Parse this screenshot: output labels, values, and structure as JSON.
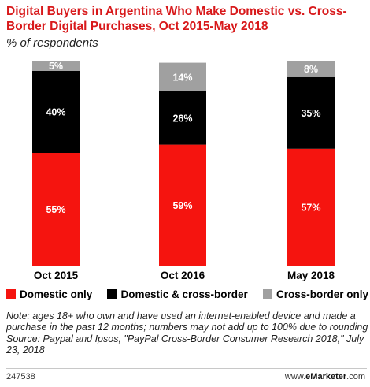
{
  "title": "Digital Buyers in Argentina Who Make Domestic vs. Cross-Border Digital Purchases, Oct 2015-May 2018",
  "subtitle": "% of respondents",
  "chart_data": {
    "type": "bar",
    "stacked": true,
    "categories": [
      "Oct 2015",
      "Oct 2016",
      "May 2018"
    ],
    "series": [
      {
        "name": "Domestic only",
        "color": "#f5140f",
        "values": [
          55,
          59,
          57
        ],
        "labels": [
          "55%",
          "59%",
          "57%"
        ]
      },
      {
        "name": "Domestic & cross-border",
        "color": "#000000",
        "values": [
          40,
          26,
          35
        ],
        "labels": [
          "40%",
          "26%",
          "35%"
        ]
      },
      {
        "name": "Cross-border only",
        "color": "#a0a0a0",
        "values": [
          5,
          14,
          8
        ],
        "labels": [
          "5%",
          "14%",
          "8%"
        ]
      }
    ],
    "ylim": [
      0,
      100
    ],
    "grid": false,
    "legend_position": "bottom"
  },
  "legend": {
    "domestic": "Domestic only",
    "both": "Domestic & cross-border",
    "cross": "Cross-border only"
  },
  "note": {
    "line1": "Note: ages 18+ who own and have used an internet-enabled device and made a purchase in the past 12 months; numbers may not add up to 100% due to rounding",
    "line2": "Source: Paypal and Ipsos, \"PayPal Cross-Border Consumer Research 2018,\" July 23, 2018"
  },
  "footer": {
    "id": "247538",
    "brand_prefix": "www.",
    "brand_name": "eMarketer",
    "brand_suffix": ".com"
  }
}
